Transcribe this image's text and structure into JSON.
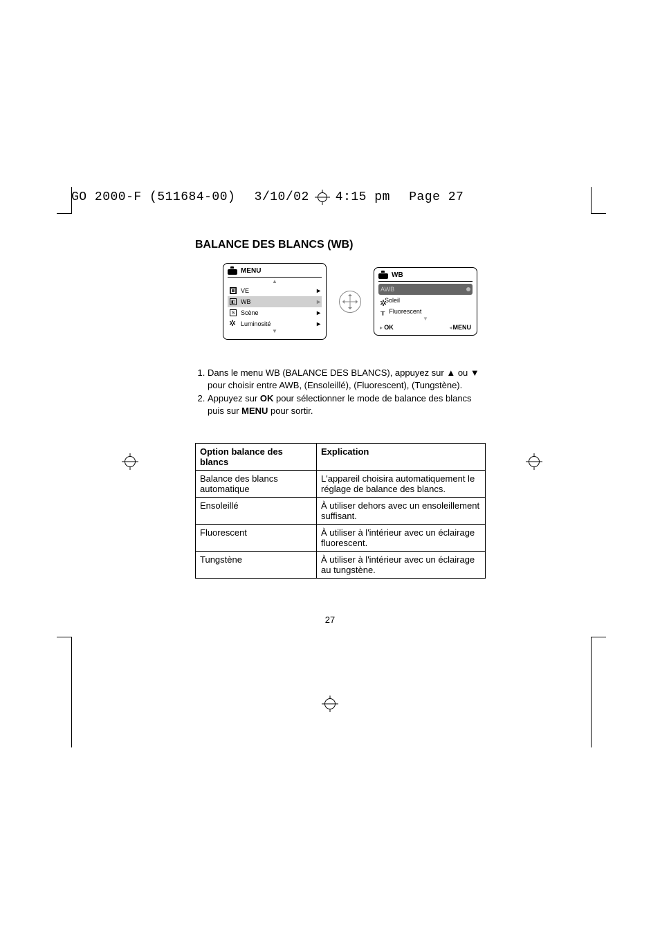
{
  "doc_header": {
    "filename": "GO 2000-F (511684-00)",
    "date": "3/10/02",
    "time": "4:15 pm",
    "page_label": "Page 27"
  },
  "section_title": "BALANCE DES BLANCS (WB)",
  "left_panel": {
    "title": "MENU",
    "items": [
      {
        "label": "VE",
        "icon": "ev"
      },
      {
        "label": "WB",
        "icon": "wb"
      },
      {
        "label": "Scène",
        "icon": "scene"
      },
      {
        "label": "Luminosité",
        "icon": "sun"
      }
    ]
  },
  "right_panel": {
    "title": "WB",
    "options": [
      {
        "label": "AWB",
        "icon": "",
        "selected": true
      },
      {
        "label": "Soleil",
        "icon": "sun",
        "selected": false
      },
      {
        "label": "Fluorescent",
        "icon": "fluo",
        "selected": false
      }
    ],
    "ok_label": "OK",
    "menu_label": "MENU"
  },
  "instructions": {
    "items": [
      "Dans le menu WB (BALANCE DES BLANCS), appuyez sur ▲ ou ▼ pour choisir entre AWB, (Ensoleillé), (Fluorescent), (Tungstène).",
      "Appuyez sur OK pour sélectionner le mode de balance des blancs puis sur MENU pour sortir."
    ],
    "item2_prefix": "Appuyez sur ",
    "item2_ok": "OK",
    "item2_mid": " pour sélectionner le mode de balance des blancs puis sur ",
    "item2_menu": "MENU",
    "item2_suffix": " pour sortir."
  },
  "table": {
    "headers": [
      "Option balance des blancs",
      "Explication"
    ],
    "rows": [
      [
        "Balance des blancs automatique",
        "L'appareil choisira automatiquement le réglage de balance des blancs."
      ],
      [
        "Ensoleillé",
        "À utiliser dehors avec un ensoleillement suffisant."
      ],
      [
        "Fluorescent",
        "À utiliser à l'intérieur avec un éclairage fluorescent."
      ],
      [
        "Tungstène",
        "À utiliser à l'intérieur avec un éclairage au tungstène."
      ]
    ]
  },
  "page_number": "27",
  "colors": {
    "text": "#000000",
    "bg": "#ffffff",
    "sel_bg_left": "#d0d0d0",
    "sel_bg_right": "#666666",
    "sel_text_right": "#cccccc"
  }
}
